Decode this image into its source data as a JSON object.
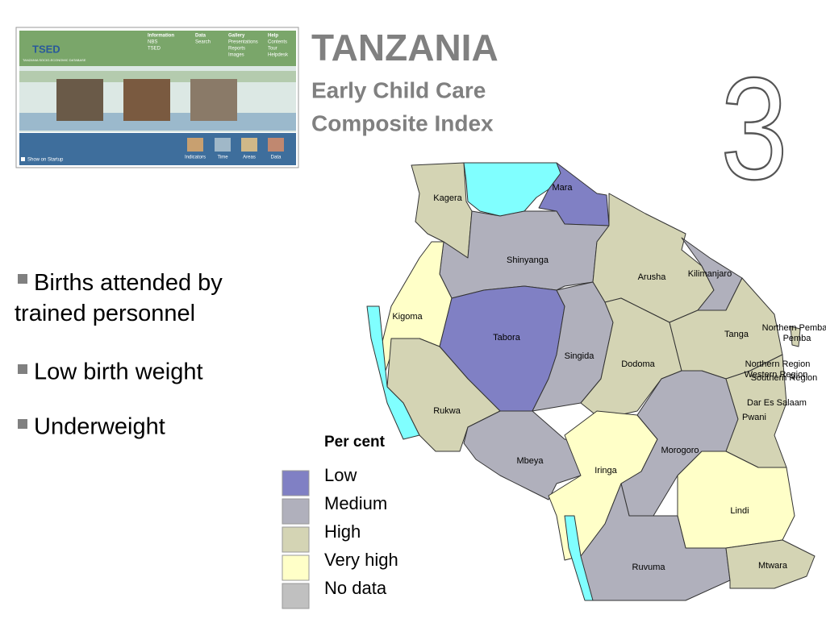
{
  "header": {
    "title": "TANZANIA",
    "subtitle_lines": [
      "Early Child Care",
      "Composite Index"
    ],
    "slide_number": "3"
  },
  "screenshot": {
    "logo": "TSED",
    "logo_caption": "TANZANIA SOCIO-ECONOMIC DATABASE",
    "menus": [
      {
        "label": "Information",
        "items": [
          "NBS",
          "TSED"
        ]
      },
      {
        "label": "Data",
        "items": [
          "Search"
        ]
      },
      {
        "label": "Gallery",
        "items": [
          "Presentations",
          "Reports",
          "Images"
        ]
      },
      {
        "label": "Help",
        "items": [
          "Contents",
          "Tour",
          "Helpdesk"
        ]
      }
    ],
    "checkbox": "Show on Startup",
    "buttons": [
      "Indicators",
      "Time",
      "Areas",
      "Data"
    ]
  },
  "bullets": [
    "Births attended by trained personnel",
    "Low birth weight",
    "Underweight"
  ],
  "legend": {
    "title": "Per cent",
    "items": [
      {
        "label": "Low",
        "color": "#8080c4"
      },
      {
        "label": "Medium",
        "color": "#b0b0bc"
      },
      {
        "label": "High",
        "color": "#d4d4b4"
      },
      {
        "label": "Very high",
        "color": "#ffffc8"
      },
      {
        "label": "No data",
        "color": "#c0c0c0"
      }
    ]
  },
  "regions": [
    "Kagera",
    "Mara",
    "Shinyanga",
    "Arusha",
    "Kilimanjaro",
    "Kigoma",
    "Tabora",
    "Singida",
    "Dodoma",
    "Tanga",
    "Northern Pemba",
    "Pemba",
    "Northern Region",
    "Western Region",
    "Southern Region",
    "Dar Es Salaam",
    "Pwani",
    "Rukwa",
    "Mbeya",
    "Iringa",
    "Morogoro",
    "Lindi",
    "Ruvuma",
    "Mtwara"
  ]
}
